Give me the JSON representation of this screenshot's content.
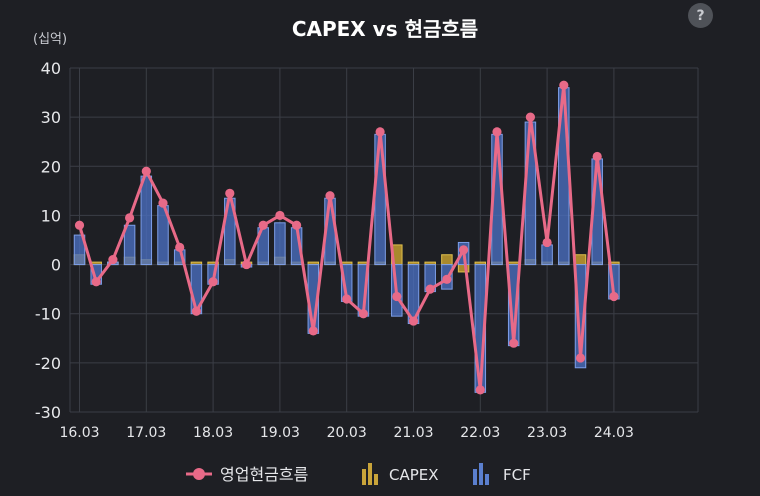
{
  "chart_data": {
    "type": "bar",
    "title": "CAPEX vs 현금흐름",
    "ylabel": "(십억)",
    "ylim": [
      -30,
      40
    ],
    "yticks": [
      40,
      30,
      20,
      10,
      0,
      -10,
      -20,
      -30
    ],
    "xticks": [
      "16.03",
      "17.03",
      "18.03",
      "19.03",
      "20.03",
      "21.03",
      "22.03",
      "23.03",
      "24.03"
    ],
    "categories": [
      "16.03",
      "16.06",
      "16.09",
      "16.12",
      "17.03",
      "17.06",
      "17.09",
      "17.12",
      "18.03",
      "18.06",
      "18.09",
      "18.12",
      "19.03",
      "19.06",
      "19.09",
      "19.12",
      "20.03",
      "20.06",
      "20.09",
      "20.12",
      "21.03",
      "21.06",
      "21.09",
      "21.12",
      "22.03",
      "22.06",
      "22.09",
      "22.12",
      "23.03",
      "23.06",
      "23.09",
      "23.12",
      "24.03"
    ],
    "grid": true,
    "legend_position": "bottom",
    "series": [
      {
        "name": "영업현금흐름",
        "type": "line",
        "color": "#e86a88",
        "values": [
          8,
          -3.5,
          1,
          9.5,
          19,
          12.5,
          3.5,
          -9.5,
          -3.5,
          14.5,
          0,
          8,
          10,
          8,
          -13.5,
          14,
          -7,
          -10,
          27,
          -6.5,
          -11.5,
          -5,
          -3,
          3,
          -25.5,
          27,
          -16,
          30,
          4.5,
          36.5,
          -19,
          22,
          -6.5
        ]
      },
      {
        "name": "CAPEX",
        "type": "bar",
        "color": "#c9a43a",
        "values": [
          2,
          0.5,
          0.5,
          1.5,
          1,
          0.5,
          0.5,
          0.5,
          0.5,
          1,
          0.5,
          0.5,
          1.5,
          0.5,
          0.5,
          0.5,
          0.5,
          0.5,
          0.5,
          4,
          0.5,
          0.5,
          2,
          -1.5,
          0.5,
          0.5,
          0.5,
          1,
          0.5,
          0.5,
          2,
          0.5,
          0.5
        ]
      },
      {
        "name": "FCF",
        "type": "bar",
        "color": "#5b7fce",
        "values": [
          6,
          -4,
          0.5,
          8,
          18,
          12,
          3,
          -10,
          -4,
          13.5,
          -0.5,
          7.5,
          8.5,
          7.5,
          -14,
          13.5,
          -7.5,
          -10.5,
          26.5,
          -10.5,
          -12,
          -5.5,
          -5,
          4.5,
          -26,
          26.5,
          -16.5,
          29,
          4,
          36,
          -21,
          21.5,
          -7
        ]
      }
    ]
  }
}
